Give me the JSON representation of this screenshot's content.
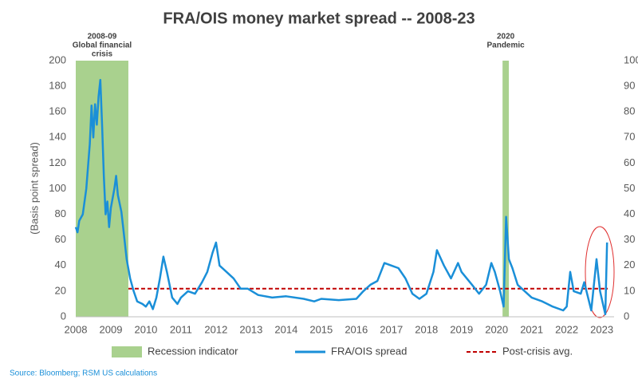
{
  "chart_data": {
    "type": "line",
    "title": "FRA/OIS money market spread -- 2008-23",
    "y_label": "(Basis point spread)",
    "source": "Source: Bloomberg; RSM US calculations",
    "xlim": [
      2008,
      2023.35
    ],
    "xticks": [
      2008,
      2009,
      2010,
      2011,
      2012,
      2013,
      2014,
      2015,
      2016,
      2017,
      2018,
      2019,
      2020,
      2021,
      2022,
      2023
    ],
    "ylim": [
      0,
      200
    ],
    "yticks": [
      0,
      20,
      40,
      60,
      80,
      100,
      120,
      140,
      160,
      180,
      200
    ],
    "y2lim": [
      0,
      100
    ],
    "y2ticks": [
      0,
      10,
      20,
      30,
      40,
      50,
      60,
      70,
      80,
      90,
      100
    ],
    "x": [
      2008.0,
      2008.05,
      2008.1,
      2008.2,
      2008.3,
      2008.4,
      2008.45,
      2008.5,
      2008.55,
      2008.6,
      2008.65,
      2008.7,
      2008.75,
      2008.8,
      2008.85,
      2008.9,
      2008.95,
      2009.0,
      2009.1,
      2009.15,
      2009.2,
      2009.3,
      2009.35,
      2009.45,
      2009.55,
      2009.65,
      2009.75,
      2009.9,
      2010.0,
      2010.1,
      2010.2,
      2010.3,
      2010.4,
      2010.5,
      2010.6,
      2010.75,
      2010.9,
      2011.0,
      2011.2,
      2011.4,
      2011.6,
      2011.75,
      2011.9,
      2012.0,
      2012.1,
      2012.3,
      2012.5,
      2012.7,
      2012.9,
      2013.2,
      2013.6,
      2014.0,
      2014.5,
      2014.8,
      2015.0,
      2015.5,
      2016.0,
      2016.2,
      2016.4,
      2016.6,
      2016.8,
      2017.0,
      2017.2,
      2017.4,
      2017.6,
      2017.8,
      2018.0,
      2018.2,
      2018.3,
      2018.5,
      2018.7,
      2018.9,
      2019.0,
      2019.3,
      2019.5,
      2019.7,
      2019.85,
      2019.95,
      2020.1,
      2020.2,
      2020.27,
      2020.35,
      2020.45,
      2020.6,
      2020.8,
      2021.0,
      2021.3,
      2021.6,
      2021.9,
      2022.0,
      2022.1,
      2022.2,
      2022.4,
      2022.5,
      2022.7,
      2022.85,
      2022.95,
      2023.1,
      2023.15
    ],
    "series": [
      {
        "name": "FRA/OIS spread",
        "color": "#1a8fd8",
        "values": [
          70,
          66,
          75,
          80,
          100,
          135,
          165,
          140,
          166,
          150,
          172,
          185,
          150,
          110,
          80,
          90,
          70,
          85,
          100,
          110,
          95,
          82,
          70,
          45,
          30,
          20,
          12,
          10,
          8,
          12,
          6,
          15,
          30,
          47,
          35,
          15,
          10,
          15,
          20,
          18,
          27,
          35,
          50,
          58,
          40,
          35,
          30,
          22,
          22,
          17,
          15,
          16,
          14,
          12,
          14,
          13,
          14,
          20,
          25,
          28,
          42,
          40,
          38,
          30,
          18,
          14,
          18,
          35,
          52,
          40,
          30,
          42,
          35,
          25,
          18,
          25,
          42,
          35,
          20,
          8,
          78,
          45,
          38,
          25,
          20,
          15,
          12,
          8,
          5,
          8,
          35,
          20,
          18,
          27,
          5,
          45,
          20,
          2,
          58
        ]
      }
    ],
    "recession": {
      "name": "Recession indicator",
      "color": "#a9d18e",
      "periods": [
        {
          "start": 2008.0,
          "end": 2009.5,
          "label": [
            "2008-09",
            "Global financial",
            "crisis"
          ]
        },
        {
          "start": 2020.17,
          "end": 2020.35,
          "label": [
            "2020",
            "Pandemic"
          ]
        }
      ]
    },
    "average": {
      "name": "Post-crisis avg.",
      "value": 22,
      "start": 2009.5,
      "color": "#c00000"
    }
  }
}
